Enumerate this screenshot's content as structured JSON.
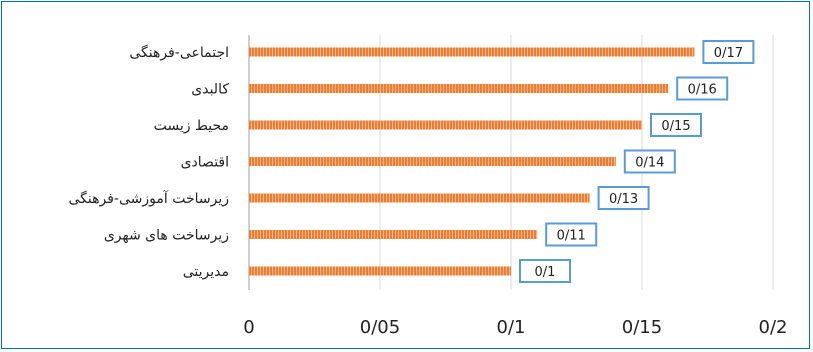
{
  "chart_data": {
    "type": "bar",
    "orientation": "horizontal",
    "categories": [
      "اجتماعی-فرهنگی",
      "کالبدی",
      "محیط زیست",
      "اقتصادی",
      "زیرساخت آموزشی-فرهنگی",
      "زیرساخت های شهری",
      "مدیریتی"
    ],
    "values": [
      0.17,
      0.16,
      0.15,
      0.14,
      0.13,
      0.11,
      0.1
    ],
    "data_labels": [
      "0/17",
      "0/16",
      "0/15",
      "0/14",
      "0/13",
      "0/11",
      "0/1"
    ],
    "xlim": [
      0,
      0.2
    ],
    "x_ticks": [
      0,
      0.05,
      0.1,
      0.15,
      0.2
    ],
    "x_tick_labels": [
      "0",
      "0/05",
      "0/1",
      "0/15",
      "0/2"
    ],
    "grid": "vertical",
    "bar_color": "#ed7d31",
    "label_border_color": "#5b9bd5",
    "grid_color": "#d9d9d9",
    "frame_color": "#0070c0"
  }
}
